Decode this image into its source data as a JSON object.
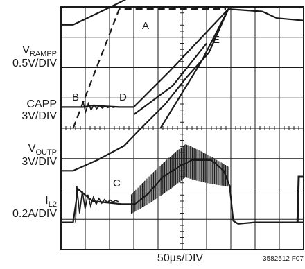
{
  "chart_data": {
    "type": "line",
    "title": "",
    "xlabel": "50µs/DIV",
    "x_divisions": 10,
    "y_divisions": 8,
    "grid": true,
    "figure_id": "3582512 F07",
    "channels": [
      {
        "name": "RAMPP",
        "label_main": "V",
        "label_sub": "RAMPP",
        "scale": "0.5V/DIV"
      },
      {
        "name": "CAPP",
        "label_main": "CAPP",
        "label_sub": "",
        "scale": "3V/DIV"
      },
      {
        "name": "OUTP",
        "label_main": "V",
        "label_sub": "OUTP",
        "scale": "3V/DIV"
      },
      {
        "name": "L2",
        "label_main": "I",
        "label_sub": "L2",
        "scale": "0.2A/DIV"
      }
    ],
    "markers": [
      "A",
      "B",
      "C",
      "D",
      "E"
    ],
    "series": [
      {
        "name": "VRAMPP",
        "style": "solid",
        "points": [
          [
            0,
            -0.59
          ],
          [
            0.5,
            -0.59
          ],
          [
            2.05,
            0
          ],
          [
            3.3,
            0.5
          ],
          [
            4.6,
            1
          ]
        ]
      },
      {
        "name": "VRAMPP (A)",
        "style": "dashed",
        "points": [
          [
            0.5,
            -4
          ],
          [
            2.4,
            -0.07
          ],
          [
            4.8,
            -0.07
          ],
          [
            6.8,
            -0.07
          ]
        ]
      },
      {
        "name": "VRAMPP (E)",
        "style": "solid",
        "points": [
          [
            4.1,
            -4
          ],
          [
            5.8,
            -1.78
          ],
          [
            6.9,
            -0.07
          ],
          [
            8.3,
            -0.15
          ],
          [
            8.9,
            -0.37
          ],
          [
            10,
            -0.45
          ]
        ]
      },
      {
        "name": "CAPP",
        "style": "solid",
        "points": [
          [
            0,
            -3.3
          ],
          [
            0.9,
            -3.3
          ],
          [
            1.3,
            -3.25
          ],
          [
            2.4,
            -3.3
          ],
          [
            3.0,
            -3.3
          ],
          [
            3.5,
            -2.9
          ],
          [
            4.5,
            -2.1
          ],
          [
            5.8,
            -1.0
          ],
          [
            6.9,
            -0.07
          ]
        ]
      },
      {
        "name": "CAPP (lower)",
        "style": "solid",
        "points": [
          [
            3.0,
            -3.55
          ],
          [
            4.6,
            -2.6
          ],
          [
            6.0,
            -1.2
          ]
        ]
      },
      {
        "name": "VOUTP",
        "style": "solid",
        "points": [
          [
            0,
            -5.4
          ],
          [
            0.5,
            -5.4
          ],
          [
            1.5,
            -5.05
          ],
          [
            2.6,
            -4.58
          ],
          [
            3.3,
            -4.0
          ],
          [
            4.3,
            -3.2
          ],
          [
            5.2,
            -2.3
          ],
          [
            6.1,
            -1.5
          ],
          [
            6.9,
            -0.07
          ]
        ]
      },
      {
        "name": "IL2",
        "style": "solid",
        "points": [
          [
            0,
            -7.1
          ],
          [
            0.5,
            -7.1
          ],
          [
            0.7,
            -6.0
          ],
          [
            1.3,
            -6.4
          ],
          [
            2.5,
            -6.5
          ],
          [
            3.05,
            -6.5
          ],
          [
            3.6,
            -6.15
          ],
          [
            4.2,
            -5.6
          ],
          [
            4.9,
            -5.25
          ],
          [
            5.4,
            -5.05
          ],
          [
            6.2,
            -5.05
          ],
          [
            6.7,
            -5.4
          ],
          [
            6.95,
            -5.9
          ],
          [
            7.1,
            -7.05
          ],
          [
            7.3,
            -7.15
          ],
          [
            8.0,
            -7.1
          ],
          [
            10,
            -7.1
          ]
        ]
      }
    ]
  }
}
